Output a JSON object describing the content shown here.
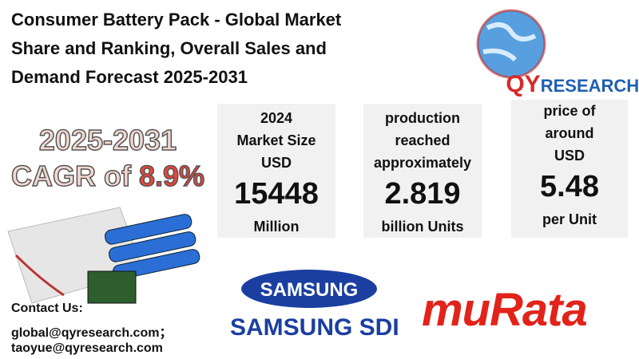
{
  "header": {
    "title_lines": [
      "Consumer Battery Pack - Global Market",
      "Share and Ranking, Overall Sales and",
      "Demand Forecast 2025-2031"
    ]
  },
  "logo": {
    "prefix": "QY",
    "suffix": "RESEARCH"
  },
  "cagr": {
    "period": "2025-2031",
    "label": "CAGR of ",
    "rate": "8.9%"
  },
  "stats": [
    {
      "lines": [
        "2024",
        "Market Size",
        "USD"
      ],
      "value": "15448",
      "unit": "Million"
    },
    {
      "lines": [
        "production",
        "reached",
        "approximately"
      ],
      "value": "2.819",
      "unit": "billion Units"
    },
    {
      "lines": [
        "price of",
        "around",
        "USD"
      ],
      "value": "5.48",
      "unit": "per  Unit"
    }
  ],
  "contact": {
    "heading": "Contact Us:",
    "emails": [
      "global@qyresearch.com；",
      "taoyue@qyresearch.com"
    ]
  },
  "brands": {
    "samsung": "SAMSUNG",
    "samsung_sdi": "SAMSUNG SDI",
    "murata": "muRata"
  }
}
